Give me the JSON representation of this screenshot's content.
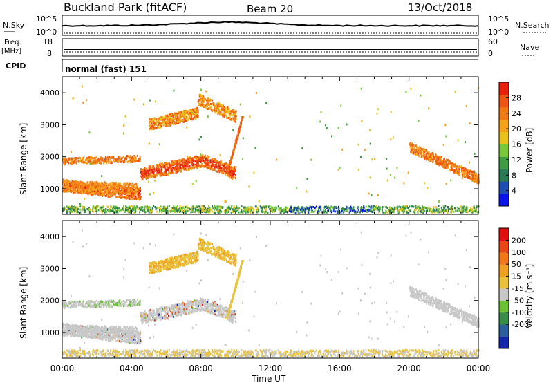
{
  "header": {
    "station": "Buckland Park (fitACF)",
    "beam": "Beam 20",
    "date": "13/Oct/2018"
  },
  "strips": {
    "nsky": {
      "label": "N.Sky",
      "left_ticks": [
        "10^5",
        "10^0"
      ],
      "right_ticks": [
        "10^5",
        "10^0"
      ],
      "right_label": "N.Search"
    },
    "freq": {
      "label": "Freq.",
      "unit": "[MHz]",
      "left_ticks": [
        "18",
        "8"
      ],
      "right_ticks": [
        "60",
        "0"
      ],
      "right_label": "Nave"
    },
    "cpid": {
      "label": "CPID",
      "text": "normal (fast) 151"
    }
  },
  "chart_data": [
    {
      "type": "heatmap",
      "panel": "power",
      "ylabel": "Slant Range [km]",
      "yticks": [
        "1000",
        "2000",
        "3000",
        "4000"
      ],
      "ylim": [
        200,
        4500
      ],
      "xlim": [
        0,
        24
      ],
      "colorbar": {
        "label": "Power [dB]",
        "ticks": [
          "4",
          "8",
          "12",
          "16",
          "20",
          "24",
          "28"
        ],
        "range": [
          0,
          32
        ],
        "colors": [
          "#0b14e8",
          "#1f4fb0",
          "#2a7a55",
          "#3f9c44",
          "#78c83a",
          "#e6c21a",
          "#f5a21a",
          "#f07a14",
          "#ee5512",
          "#e8200e"
        ]
      }
    },
    {
      "type": "heatmap",
      "panel": "velocity",
      "ylabel": "Slant Range [km]",
      "yticks": [
        "1000",
        "2000",
        "3000",
        "4000"
      ],
      "ylim": [
        200,
        4500
      ],
      "xlim": [
        0,
        24
      ],
      "colorbar": {
        "label": "Velocity [m s⁻¹]",
        "ticks": [
          "200",
          "100",
          "50",
          "15",
          "-15",
          "-50",
          "-100",
          "-200"
        ],
        "colors": [
          "#1626a8",
          "#2c5e9a",
          "#3a8c4a",
          "#6cc036",
          "#c8c8c8",
          "#e8c23a",
          "#f0a020",
          "#f07818",
          "#e84614",
          "#e01010"
        ]
      }
    }
  ],
  "xaxis": {
    "label": "Time UT",
    "ticks": [
      "00:00",
      "04:00",
      "08:00",
      "12:00",
      "16:00",
      "20:00",
      "00:00"
    ]
  }
}
